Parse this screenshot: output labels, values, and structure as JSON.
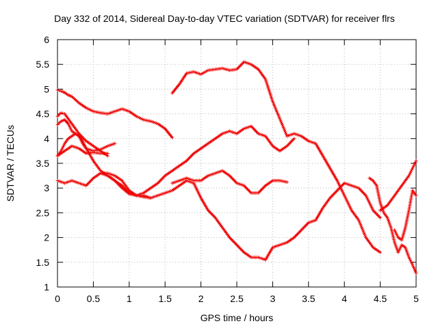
{
  "chart_data": {
    "type": "scatter",
    "title": "Day 332 of 2014, Sidereal Day-to-day VTEC variation (SDTVAR) for receiver flrs",
    "xlabel": "GPS time / hours",
    "ylabel": "SDTVAR / TECUs",
    "xlim": [
      0,
      5
    ],
    "ylim": [
      1,
      6
    ],
    "xticks": [
      "0",
      "0.5",
      "1",
      "1.5",
      "2",
      "2.5",
      "3",
      "3.5",
      "4",
      "4.5",
      "5"
    ],
    "yticks": [
      "1",
      "1.5",
      "2",
      "2.5",
      "3",
      "3.5",
      "4",
      "4.5",
      "5",
      "5.5",
      "6"
    ],
    "grid": true,
    "marker": "plus",
    "colors": {
      "series": "#ee0000",
      "grid": "#b8b8b8",
      "axes": "#000000"
    },
    "series": [
      {
        "x": [
          0.0,
          0.05,
          0.1,
          0.15,
          0.2,
          0.3,
          0.4,
          0.5,
          0.6,
          0.7,
          0.8,
          0.9,
          1.0,
          1.1,
          1.2,
          1.3,
          1.4,
          1.5,
          1.6
        ],
        "y": [
          4.98,
          4.96,
          4.93,
          4.88,
          4.85,
          4.72,
          4.62,
          4.55,
          4.52,
          4.5,
          4.55,
          4.6,
          4.55,
          4.45,
          4.38,
          4.35,
          4.3,
          4.2,
          4.02
        ]
      },
      {
        "x": [
          0.0,
          0.05,
          0.1,
          0.15,
          0.2,
          0.3,
          0.4,
          0.5,
          0.6,
          0.7
        ],
        "y": [
          4.45,
          4.52,
          4.5,
          4.4,
          4.3,
          4.1,
          3.95,
          3.85,
          3.75,
          3.65
        ]
      },
      {
        "x": [
          0.0,
          0.05,
          0.1,
          0.15,
          0.2,
          0.25,
          0.3,
          0.35,
          0.4,
          0.5,
          0.6,
          0.7,
          0.8,
          0.9,
          1.0,
          1.1,
          1.2,
          1.3
        ],
        "y": [
          4.28,
          4.35,
          4.38,
          4.3,
          4.15,
          4.1,
          4.05,
          3.95,
          3.8,
          3.55,
          3.35,
          3.25,
          3.15,
          3.0,
          2.88,
          2.85,
          2.82,
          2.8
        ]
      },
      {
        "x": [
          0.0,
          0.05,
          0.1,
          0.15,
          0.2,
          0.25,
          0.3,
          0.35,
          0.4,
          0.5,
          0.6,
          0.7,
          0.8
        ],
        "y": [
          3.65,
          3.75,
          3.9,
          4.0,
          4.05,
          4.1,
          4.05,
          3.9,
          3.8,
          3.75,
          3.78,
          3.85,
          3.9
        ]
      },
      {
        "x": [
          0.0,
          0.05,
          0.1,
          0.15,
          0.2,
          0.3,
          0.4,
          0.5,
          0.6,
          0.7
        ],
        "y": [
          3.65,
          3.7,
          3.75,
          3.8,
          3.85,
          3.8,
          3.7,
          3.72,
          3.7,
          3.7
        ]
      },
      {
        "x": [
          0.0,
          0.1,
          0.2,
          0.3,
          0.4,
          0.5,
          0.6,
          0.7,
          0.8,
          0.9,
          1.0,
          1.1,
          1.2,
          1.3,
          1.4,
          1.5,
          1.6,
          1.7,
          1.8,
          1.9,
          2.0,
          2.1,
          2.2,
          2.3,
          2.4,
          2.5,
          2.6,
          2.7,
          2.8,
          2.9,
          3.0,
          3.1,
          3.2,
          3.3,
          3.4,
          3.5,
          3.6,
          3.7,
          3.8,
          3.9,
          4.0,
          4.1,
          4.2,
          4.3,
          4.4,
          4.5
        ],
        "y": [
          3.15,
          3.1,
          3.15,
          3.1,
          3.05,
          3.2,
          3.3,
          3.3,
          3.25,
          3.15,
          2.95,
          2.85,
          2.85,
          2.8,
          2.85,
          2.9,
          2.95,
          3.05,
          3.15,
          3.1,
          2.8,
          2.55,
          2.4,
          2.2,
          2.0,
          1.85,
          1.7,
          1.6,
          1.6,
          1.55,
          1.8,
          1.85,
          1.9,
          2.0,
          2.15,
          2.3,
          2.35,
          2.6,
          2.8,
          2.95,
          3.1,
          3.05,
          3.0,
          2.85,
          2.55,
          2.4
        ]
      },
      {
        "x": [
          0.6,
          0.7,
          0.8,
          0.9,
          1.0,
          1.1,
          1.2,
          1.3,
          1.4,
          1.5,
          1.6,
          1.7,
          1.8,
          1.9,
          2.0,
          2.1,
          2.2,
          2.3,
          2.4,
          2.5,
          2.6,
          2.7,
          2.8,
          2.9,
          3.0,
          3.1,
          3.2,
          3.3
        ],
        "y": [
          3.3,
          3.25,
          3.15,
          3.05,
          2.9,
          2.85,
          2.9,
          3.0,
          3.1,
          3.25,
          3.35,
          3.45,
          3.55,
          3.7,
          3.8,
          3.9,
          4.0,
          4.1,
          4.15,
          4.1,
          4.2,
          4.25,
          4.1,
          4.05,
          3.85,
          3.75,
          3.85,
          4.0
        ]
      },
      {
        "x": [
          1.6,
          1.7,
          1.8,
          1.9,
          2.0,
          2.1,
          2.2,
          2.3,
          2.4,
          2.5,
          2.6,
          2.7,
          2.8,
          2.9,
          3.0,
          3.1,
          3.2,
          3.3,
          3.4,
          3.5,
          3.6,
          3.7,
          3.8,
          3.9,
          4.0,
          4.1,
          4.2,
          4.3,
          4.4,
          4.5
        ],
        "y": [
          4.92,
          5.1,
          5.32,
          5.35,
          5.3,
          5.38,
          5.4,
          5.42,
          5.38,
          5.4,
          5.55,
          5.5,
          5.4,
          5.2,
          4.75,
          4.4,
          4.05,
          4.1,
          4.05,
          3.95,
          3.9,
          3.65,
          3.4,
          3.15,
          2.85,
          2.55,
          2.35,
          2.0,
          1.8,
          1.7
        ]
      },
      {
        "x": [
          1.6,
          1.7,
          1.8,
          1.9,
          2.0,
          2.1,
          2.2,
          2.3,
          2.4,
          2.5,
          2.6,
          2.7,
          2.8,
          2.9,
          3.0,
          3.1,
          3.2
        ],
        "y": [
          3.1,
          3.15,
          3.2,
          3.15,
          3.15,
          3.25,
          3.3,
          3.35,
          3.25,
          3.1,
          3.05,
          2.9,
          2.9,
          3.05,
          3.15,
          3.15,
          3.12
        ]
      },
      {
        "x": [
          4.35,
          4.4,
          4.45,
          4.5,
          4.55,
          4.6,
          4.65,
          4.7,
          4.75,
          4.8,
          4.85,
          4.9,
          4.95,
          5.0
        ],
        "y": [
          3.2,
          3.15,
          3.05,
          2.7,
          2.5,
          2.4,
          2.2,
          1.9,
          1.7,
          1.85,
          1.8,
          1.6,
          1.45,
          1.28
        ]
      },
      {
        "x": [
          4.5,
          4.6,
          4.7,
          4.8,
          4.85,
          4.9,
          4.95,
          5.0
        ],
        "y": [
          2.55,
          2.65,
          2.85,
          3.05,
          3.15,
          3.25,
          3.4,
          3.55
        ]
      },
      {
        "x": [
          4.7,
          4.75,
          4.8,
          4.85,
          4.9,
          4.95,
          5.0
        ],
        "y": [
          2.15,
          2.0,
          1.95,
          2.2,
          2.55,
          2.95,
          2.85
        ]
      }
    ]
  }
}
